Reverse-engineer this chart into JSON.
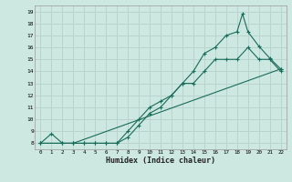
{
  "xlabel": "Humidex (Indice chaleur)",
  "bg_color": "#cce8e0",
  "grid_color": "#b8d4cc",
  "line_color": "#1a6b5a",
  "xlim": [
    -0.5,
    22.5
  ],
  "ylim": [
    7.5,
    19.5
  ],
  "xticks": [
    0,
    1,
    2,
    3,
    4,
    5,
    6,
    7,
    8,
    9,
    10,
    11,
    12,
    13,
    14,
    15,
    16,
    17,
    18,
    19,
    20,
    21,
    22
  ],
  "yticks": [
    8,
    9,
    10,
    11,
    12,
    13,
    14,
    15,
    16,
    17,
    18,
    19
  ],
  "line1_x": [
    0,
    1,
    2,
    3,
    4,
    5,
    6,
    7,
    8,
    9,
    10,
    11,
    12,
    13,
    14,
    15,
    16,
    17,
    18,
    19,
    20,
    21,
    22
  ],
  "line1_y": [
    8,
    8.8,
    8,
    8,
    8,
    8,
    8,
    8,
    8.5,
    9.5,
    10.5,
    11,
    12,
    13,
    13,
    14,
    15,
    15,
    15,
    16,
    15,
    15,
    14
  ],
  "line2_x": [
    0,
    2,
    3,
    4,
    5,
    6,
    7,
    8,
    9,
    10,
    11,
    12,
    13,
    14,
    15,
    16,
    17,
    18,
    18.5,
    19,
    20,
    21,
    22
  ],
  "line2_y": [
    8,
    8,
    8,
    8,
    8,
    8,
    8,
    9,
    10,
    11,
    11.5,
    12,
    13,
    14,
    15.5,
    16,
    17,
    17.3,
    18.8,
    17.3,
    16.1,
    15.1,
    14.2
  ],
  "line3_x": [
    0,
    3,
    22
  ],
  "line3_y": [
    8,
    8,
    14.2
  ]
}
